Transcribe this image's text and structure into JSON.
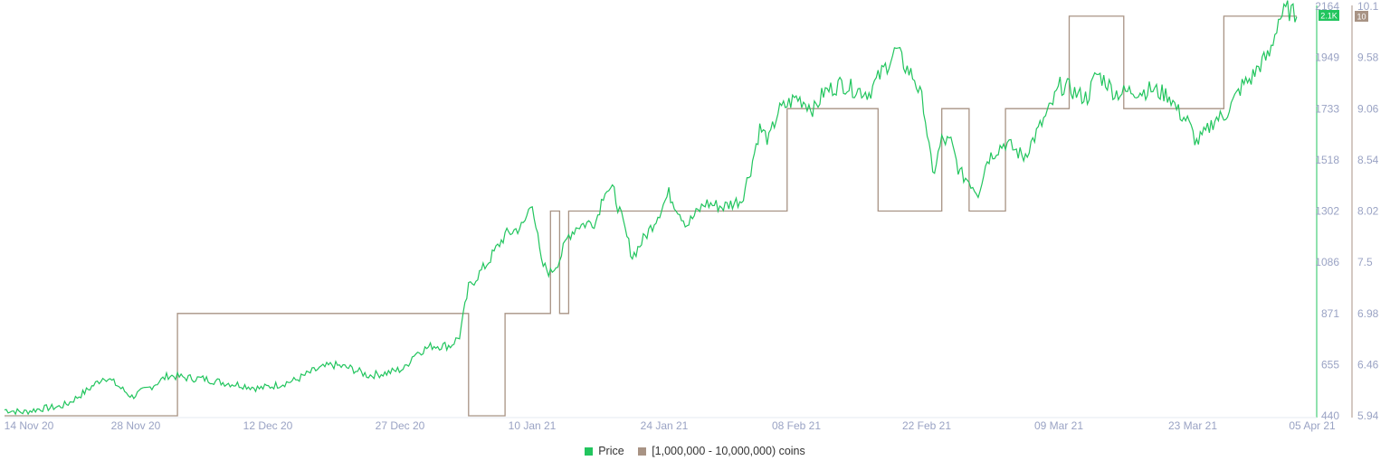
{
  "chart_data": {
    "type": "line",
    "x_ticks": [
      "14 Nov 20",
      "28 Nov 20",
      "12 Dec 20",
      "27 Dec 20",
      "10 Jan 21",
      "24 Jan 21",
      "08 Feb 21",
      "22 Feb 21",
      "09 Mar 21",
      "23 Mar 21",
      "05 Apr 21"
    ],
    "y_left_ticks": [
      "2164",
      "1949",
      "1733",
      "1518",
      "1302",
      "1086",
      "871",
      "655",
      "440"
    ],
    "y_right_ticks": [
      "10.1",
      "9.58",
      "9.06",
      "8.54",
      "8.02",
      "7.5",
      "6.98",
      "6.46",
      "5.94"
    ],
    "y_left_range": [
      440,
      2164
    ],
    "y_right_range": [
      5.94,
      10.1
    ],
    "x_range": [
      "2020-11-13",
      "2021-04-06"
    ],
    "price_badge": "2.1K",
    "holders_badge": "10",
    "series": [
      {
        "name": "Price",
        "axis": "left",
        "color": "#22c55e",
        "points": [
          [
            "2020-11-13",
            465
          ],
          [
            "2020-11-15",
            455
          ],
          [
            "2020-11-17",
            470
          ],
          [
            "2020-11-19",
            478
          ],
          [
            "2020-11-20",
            492
          ],
          [
            "2020-11-22",
            545
          ],
          [
            "2020-11-24",
            605
          ],
          [
            "2020-11-25",
            580
          ],
          [
            "2020-11-27",
            520
          ],
          [
            "2020-11-29",
            560
          ],
          [
            "2020-12-01",
            610
          ],
          [
            "2020-12-03",
            600
          ],
          [
            "2020-12-05",
            595
          ],
          [
            "2020-12-07",
            580
          ],
          [
            "2020-12-09",
            570
          ],
          [
            "2020-12-11",
            555
          ],
          [
            "2020-12-13",
            570
          ],
          [
            "2020-12-15",
            590
          ],
          [
            "2020-12-17",
            630
          ],
          [
            "2020-12-19",
            655
          ],
          [
            "2020-12-21",
            640
          ],
          [
            "2020-12-23",
            610
          ],
          [
            "2020-12-25",
            620
          ],
          [
            "2020-12-27",
            640
          ],
          [
            "2020-12-28",
            700
          ],
          [
            "2020-12-30",
            735
          ],
          [
            "2021-01-01",
            735
          ],
          [
            "2021-01-02",
            775
          ],
          [
            "2021-01-03",
            980
          ],
          [
            "2021-01-05",
            1080
          ],
          [
            "2021-01-07",
            1200
          ],
          [
            "2021-01-09",
            1240
          ],
          [
            "2021-01-10",
            1345
          ],
          [
            "2021-01-11",
            1080
          ],
          [
            "2021-01-12",
            1040
          ],
          [
            "2021-01-13",
            1100
          ],
          [
            "2021-01-14",
            1200
          ],
          [
            "2021-01-15",
            1240
          ],
          [
            "2021-01-17",
            1260
          ],
          [
            "2021-01-18",
            1400
          ],
          [
            "2021-01-19",
            1380
          ],
          [
            "2021-01-21",
            1110
          ],
          [
            "2021-01-23",
            1230
          ],
          [
            "2021-01-24",
            1300
          ],
          [
            "2021-01-25",
            1375
          ],
          [
            "2021-01-27",
            1245
          ],
          [
            "2021-01-28",
            1290
          ],
          [
            "2021-01-29",
            1335
          ],
          [
            "2021-01-31",
            1320
          ],
          [
            "2021-02-02",
            1350
          ],
          [
            "2021-02-03",
            1480
          ],
          [
            "2021-02-04",
            1650
          ],
          [
            "2021-02-05",
            1600
          ],
          [
            "2021-02-06",
            1720
          ],
          [
            "2021-02-08",
            1780
          ],
          [
            "2021-02-09",
            1760
          ],
          [
            "2021-02-10",
            1730
          ],
          [
            "2021-02-11",
            1800
          ],
          [
            "2021-02-13",
            1840
          ],
          [
            "2021-02-14",
            1820
          ],
          [
            "2021-02-16",
            1800
          ],
          [
            "2021-02-18",
            1920
          ],
          [
            "2021-02-19",
            1980
          ],
          [
            "2021-02-20",
            1910
          ],
          [
            "2021-02-21",
            1860
          ],
          [
            "2021-02-22",
            1750
          ],
          [
            "2021-02-23",
            1450
          ],
          [
            "2021-02-24",
            1600
          ],
          [
            "2021-02-25",
            1590
          ],
          [
            "2021-02-26",
            1460
          ],
          [
            "2021-02-27",
            1430
          ],
          [
            "2021-02-28",
            1380
          ],
          [
            "2021-03-01",
            1520
          ],
          [
            "2021-03-02",
            1560
          ],
          [
            "2021-03-03",
            1590
          ],
          [
            "2021-03-04",
            1560
          ],
          [
            "2021-03-05",
            1530
          ],
          [
            "2021-03-06",
            1600
          ],
          [
            "2021-03-07",
            1670
          ],
          [
            "2021-03-08",
            1740
          ],
          [
            "2021-03-09",
            1830
          ],
          [
            "2021-03-10",
            1820
          ],
          [
            "2021-03-11",
            1790
          ],
          [
            "2021-03-12",
            1780
          ],
          [
            "2021-03-13",
            1880
          ],
          [
            "2021-03-14",
            1850
          ],
          [
            "2021-03-15",
            1800
          ],
          [
            "2021-03-16",
            1800
          ],
          [
            "2021-03-17",
            1810
          ],
          [
            "2021-03-18",
            1805
          ],
          [
            "2021-03-19",
            1815
          ],
          [
            "2021-03-20",
            1800
          ],
          [
            "2021-03-21",
            1790
          ],
          [
            "2021-03-22",
            1720
          ],
          [
            "2021-03-23",
            1680
          ],
          [
            "2021-03-24",
            1590
          ],
          [
            "2021-03-25",
            1630
          ],
          [
            "2021-03-26",
            1690
          ],
          [
            "2021-03-27",
            1700
          ],
          [
            "2021-03-28",
            1760
          ],
          [
            "2021-03-29",
            1830
          ],
          [
            "2021-03-30",
            1860
          ],
          [
            "2021-03-31",
            1920
          ],
          [
            "2021-04-01",
            1960
          ],
          [
            "2021-04-02",
            2110
          ],
          [
            "2021-04-03",
            2150
          ],
          [
            "2021-04-04",
            2120
          ]
        ]
      },
      {
        "name": "[1,000,000 - 10,000,000) coins",
        "axis": "right",
        "color": "#a89384",
        "step_points": [
          [
            "2020-11-13",
            5.94
          ],
          [
            "2020-12-02",
            6.98
          ],
          [
            "2020-12-02",
            6.98
          ],
          [
            "2021-01-03",
            5.94
          ],
          [
            "2021-01-07",
            6.98
          ],
          [
            "2021-01-12",
            8.02
          ],
          [
            "2021-01-13",
            6.98
          ],
          [
            "2021-01-14",
            8.02
          ],
          [
            "2021-02-07",
            9.06
          ],
          [
            "2021-02-17",
            8.02
          ],
          [
            "2021-02-24",
            9.06
          ],
          [
            "2021-02-27",
            8.02
          ],
          [
            "2021-03-03",
            9.06
          ],
          [
            "2021-03-10",
            10.0
          ],
          [
            "2021-03-16",
            9.06
          ],
          [
            "2021-03-27",
            10.0
          ],
          [
            "2021-04-04",
            10.0
          ]
        ]
      }
    ],
    "legend": [
      {
        "label": "Price",
        "color": "#22c55e"
      },
      {
        "label": "[1,000,000 - 10,000,000) coins",
        "color": "#a89384"
      }
    ]
  }
}
